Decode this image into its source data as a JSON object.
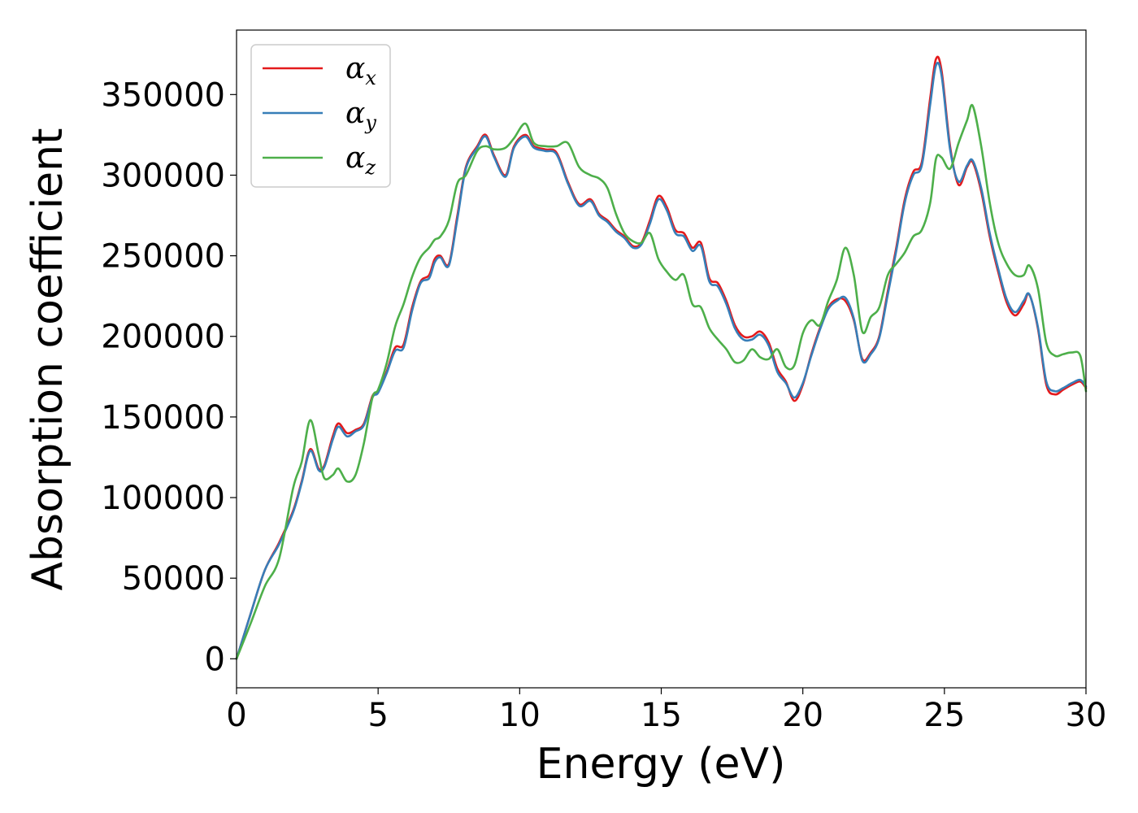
{
  "chart_data": {
    "type": "line",
    "title": "",
    "xlabel": "Energy (eV)",
    "ylabel": "Absorption coefficient",
    "xlim": [
      0,
      30
    ],
    "ylim": [
      -18000,
      390000
    ],
    "xticks": [
      0,
      5,
      10,
      15,
      20,
      25,
      30
    ],
    "yticks": [
      0,
      50000,
      100000,
      150000,
      200000,
      250000,
      300000,
      350000
    ],
    "grid": false,
    "legend_position": "top-left",
    "series": [
      {
        "name": "α_x",
        "symbol": "α",
        "subscript": "x",
        "color": "#e41a1c",
        "x": [
          0,
          0.5,
          1,
          1.5,
          2,
          2.3,
          2.6,
          2.9,
          3.1,
          3.4,
          3.6,
          3.9,
          4.2,
          4.5,
          4.8,
          5.0,
          5.3,
          5.6,
          5.9,
          6.2,
          6.5,
          6.8,
          7.0,
          7.2,
          7.5,
          7.8,
          8.1,
          8.5,
          8.8,
          9.1,
          9.5,
          9.8,
          10.2,
          10.5,
          10.9,
          11.3,
          11.7,
          12.1,
          12.5,
          12.8,
          13.1,
          13.4,
          13.7,
          14.0,
          14.3,
          14.6,
          14.9,
          15.2,
          15.5,
          15.8,
          16.1,
          16.4,
          16.7,
          17.0,
          17.3,
          17.6,
          17.9,
          18.2,
          18.5,
          18.8,
          19.1,
          19.4,
          19.7,
          20.0,
          20.3,
          20.6,
          20.9,
          21.2,
          21.5,
          21.8,
          22.1,
          22.4,
          22.7,
          23.0,
          23.3,
          23.6,
          23.9,
          24.2,
          24.5,
          24.7,
          24.9,
          25.2,
          25.5,
          25.8,
          26.0,
          26.3,
          26.6,
          26.9,
          27.2,
          27.5,
          27.8,
          28.0,
          28.3,
          28.6,
          28.9,
          29.2,
          29.5,
          29.8,
          30.0
        ],
        "values": [
          0,
          28000,
          55000,
          72000,
          92000,
          110000,
          130000,
          118000,
          120000,
          138000,
          146000,
          140000,
          142000,
          146000,
          163000,
          166000,
          178000,
          193000,
          195000,
          218000,
          234000,
          238000,
          248000,
          250000,
          245000,
          275000,
          305000,
          318000,
          325000,
          312000,
          300000,
          318000,
          325000,
          318000,
          316000,
          314000,
          296000,
          282000,
          285000,
          276000,
          272000,
          266000,
          262000,
          256000,
          258000,
          272000,
          287000,
          280000,
          266000,
          264000,
          255000,
          258000,
          236000,
          233000,
          222000,
          207000,
          200000,
          200000,
          203000,
          196000,
          180000,
          172000,
          160000,
          170000,
          189000,
          205000,
          218000,
          223000,
          222000,
          210000,
          186000,
          190000,
          200000,
          228000,
          255000,
          285000,
          302000,
          308000,
          348000,
          372000,
          365000,
          318000,
          294000,
          305000,
          308000,
          290000,
          262000,
          240000,
          221000,
          213000,
          220000,
          226000,
          205000,
          170000,
          164000,
          167000,
          170000,
          172000,
          168000
        ]
      },
      {
        "name": "α_y",
        "symbol": "α",
        "subscript": "y",
        "color": "#377eb8",
        "x": [
          0,
          0.5,
          1,
          1.5,
          2,
          2.3,
          2.6,
          2.9,
          3.1,
          3.4,
          3.6,
          3.9,
          4.2,
          4.5,
          4.8,
          5.0,
          5.3,
          5.6,
          5.9,
          6.2,
          6.5,
          6.8,
          7.0,
          7.2,
          7.5,
          7.8,
          8.1,
          8.5,
          8.8,
          9.1,
          9.5,
          9.8,
          10.2,
          10.5,
          10.9,
          11.3,
          11.7,
          12.1,
          12.5,
          12.8,
          13.1,
          13.4,
          13.7,
          14.0,
          14.3,
          14.6,
          14.9,
          15.2,
          15.5,
          15.8,
          16.1,
          16.4,
          16.7,
          17.0,
          17.3,
          17.6,
          17.9,
          18.2,
          18.5,
          18.8,
          19.1,
          19.4,
          19.7,
          20.0,
          20.3,
          20.6,
          20.9,
          21.2,
          21.5,
          21.8,
          22.1,
          22.4,
          22.7,
          23.0,
          23.3,
          23.6,
          23.9,
          24.2,
          24.5,
          24.7,
          24.9,
          25.2,
          25.5,
          25.8,
          26.0,
          26.3,
          26.6,
          26.9,
          27.2,
          27.5,
          27.8,
          28.0,
          28.3,
          28.6,
          28.9,
          29.2,
          29.5,
          29.8,
          30.0
        ],
        "values": [
          0,
          28000,
          55000,
          71000,
          91000,
          109000,
          129000,
          117000,
          119000,
          136000,
          144000,
          138000,
          141000,
          145000,
          162000,
          165000,
          177000,
          191000,
          193000,
          216000,
          233000,
          236000,
          246000,
          249000,
          244000,
          273000,
          304000,
          317000,
          324000,
          311000,
          299000,
          317000,
          324000,
          317000,
          315000,
          313000,
          295000,
          281000,
          284000,
          275000,
          271000,
          265000,
          261000,
          255000,
          257000,
          270000,
          285000,
          278000,
          264000,
          262000,
          253000,
          256000,
          234000,
          231000,
          220000,
          205000,
          198000,
          198000,
          201000,
          194000,
          178000,
          171000,
          162000,
          171000,
          188000,
          204000,
          217000,
          222000,
          224000,
          211000,
          185000,
          189000,
          199000,
          226000,
          253000,
          283000,
          300000,
          306000,
          344000,
          368000,
          362000,
          316000,
          296000,
          306000,
          309000,
          292000,
          264000,
          242000,
          223000,
          215000,
          222000,
          226000,
          206000,
          172000,
          166000,
          168000,
          171000,
          173000,
          169000
        ]
      },
      {
        "name": "α_z",
        "symbol": "α",
        "subscript": "z",
        "color": "#4daf4a",
        "x": [
          0,
          0.5,
          1,
          1.5,
          2,
          2.3,
          2.6,
          2.9,
          3.1,
          3.4,
          3.6,
          3.9,
          4.2,
          4.5,
          4.8,
          5.0,
          5.3,
          5.6,
          5.9,
          6.2,
          6.5,
          6.8,
          7.0,
          7.2,
          7.5,
          7.8,
          8.1,
          8.5,
          8.8,
          9.1,
          9.5,
          9.8,
          10.2,
          10.5,
          10.9,
          11.3,
          11.7,
          12.1,
          12.5,
          12.8,
          13.1,
          13.4,
          13.7,
          14.0,
          14.3,
          14.6,
          14.9,
          15.2,
          15.5,
          15.8,
          16.1,
          16.4,
          16.7,
          17.0,
          17.3,
          17.6,
          17.9,
          18.2,
          18.5,
          18.8,
          19.1,
          19.4,
          19.7,
          20.0,
          20.3,
          20.6,
          20.9,
          21.2,
          21.5,
          21.8,
          22.1,
          22.4,
          22.7,
          23.0,
          23.3,
          23.6,
          23.9,
          24.2,
          24.5,
          24.7,
          24.9,
          25.2,
          25.5,
          25.8,
          26.0,
          26.3,
          26.6,
          26.9,
          27.2,
          27.5,
          27.8,
          28.0,
          28.3,
          28.6,
          28.9,
          29.2,
          29.5,
          29.8,
          30.0
        ],
        "values": [
          0,
          22000,
          45000,
          62000,
          106000,
          122000,
          148000,
          127000,
          112000,
          114000,
          118000,
          110000,
          114000,
          134000,
          162000,
          167000,
          183000,
          206000,
          220000,
          237000,
          249000,
          255000,
          260000,
          262000,
          272000,
          295000,
          300000,
          315000,
          318000,
          316000,
          317000,
          323000,
          332000,
          320000,
          318000,
          318000,
          320000,
          305000,
          300000,
          298000,
          292000,
          276000,
          264000,
          259000,
          258000,
          264000,
          248000,
          240000,
          235000,
          238000,
          220000,
          218000,
          205000,
          198000,
          192000,
          184000,
          185000,
          192000,
          187000,
          186000,
          192000,
          181000,
          182000,
          202000,
          210000,
          207000,
          222000,
          235000,
          255000,
          238000,
          203000,
          212000,
          218000,
          238000,
          245000,
          252000,
          262000,
          266000,
          283000,
          310000,
          311000,
          304000,
          320000,
          334000,
          343000,
          318000,
          283000,
          258000,
          245000,
          238000,
          238000,
          244000,
          230000,
          196000,
          188000,
          189000,
          190000,
          188000,
          166000
        ]
      }
    ]
  }
}
